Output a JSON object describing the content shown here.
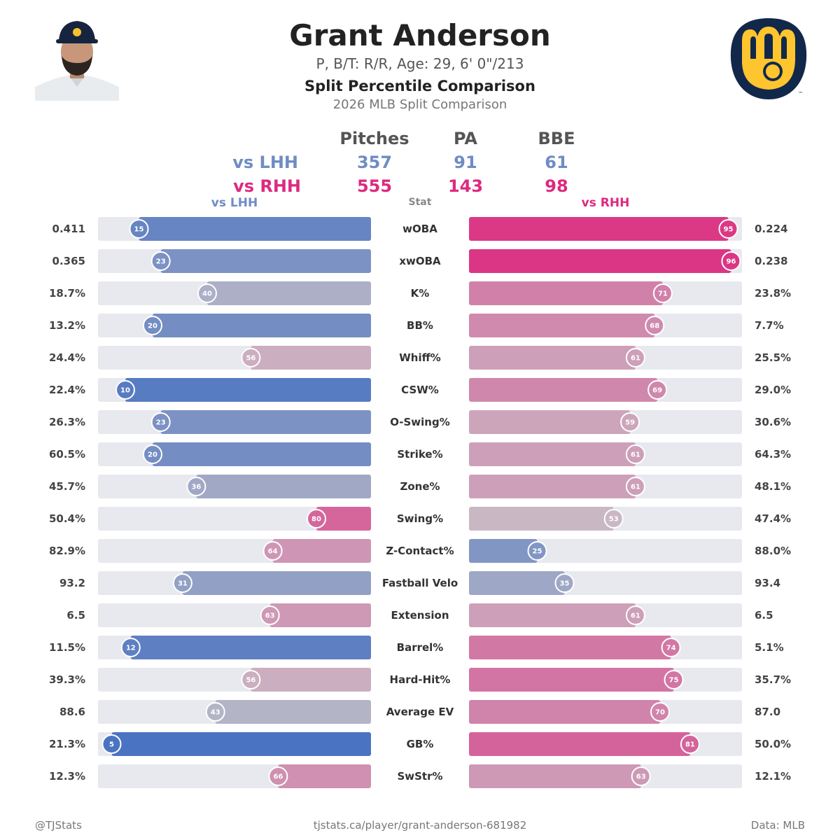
{
  "header": {
    "name": "Grant Anderson",
    "bio": "P, B/T: R/R, Age: 29, 6' 0\"/213",
    "title": "Split Percentile Comparison",
    "subtitle": "2026 MLB Split Comparison"
  },
  "summary": {
    "columns": [
      "Pitches",
      "PA",
      "BBE"
    ],
    "rows": [
      {
        "label": "vs LHH",
        "values": [
          "357",
          "91",
          "61"
        ],
        "color": "#6f8cc4"
      },
      {
        "label": "vs RHH",
        "values": [
          "555",
          "143",
          "98"
        ],
        "color": "#dd2a7f"
      }
    ]
  },
  "column_headers": {
    "left": "vs LHH",
    "center": "Stat",
    "right": "vs RHH"
  },
  "chart_data": {
    "type": "bar",
    "xlim": [
      0,
      100
    ],
    "series": [
      {
        "name": "vs LHH",
        "percentiles": [
          15,
          23,
          40,
          20,
          56,
          10,
          23,
          20,
          36,
          80,
          64,
          31,
          63,
          12,
          56,
          43,
          5,
          66
        ],
        "values": [
          "0.411",
          "0.365",
          "18.7%",
          "13.2%",
          "24.4%",
          "22.4%",
          "26.3%",
          "60.5%",
          "45.7%",
          "50.4%",
          "82.9%",
          "93.2",
          "6.5",
          "11.5%",
          "39.3%",
          "88.6",
          "21.3%",
          "12.3%"
        ]
      },
      {
        "name": "vs RHH",
        "percentiles": [
          95,
          96,
          71,
          68,
          61,
          69,
          59,
          61,
          61,
          53,
          25,
          35,
          61,
          74,
          75,
          70,
          81,
          63
        ],
        "values": [
          "0.224",
          "0.238",
          "23.8%",
          "7.7%",
          "25.5%",
          "29.0%",
          "30.6%",
          "64.3%",
          "48.1%",
          "47.4%",
          "88.0%",
          "93.4",
          "6.5",
          "5.1%",
          "35.7%",
          "87.0",
          "50.0%",
          "12.1%"
        ]
      }
    ],
    "categories": [
      "wOBA",
      "xwOBA",
      "K%",
      "BB%",
      "Whiff%",
      "CSW%",
      "O-Swing%",
      "Strike%",
      "Zone%",
      "Swing%",
      "Z-Contact%",
      "Fastball Velo",
      "Extension",
      "Barrel%",
      "Hard-Hit%",
      "Average EV",
      "GB%",
      "SwStr%"
    ]
  },
  "colors": {
    "low": "#3c6bc0",
    "mid": "#c8c0c8",
    "high": "#dd2a7f",
    "track": "#e8e9ee"
  },
  "footer": {
    "left": "@TJStats",
    "center": "tjstats.ca/player/grant-anderson-681982",
    "right": "Data: MLB"
  }
}
